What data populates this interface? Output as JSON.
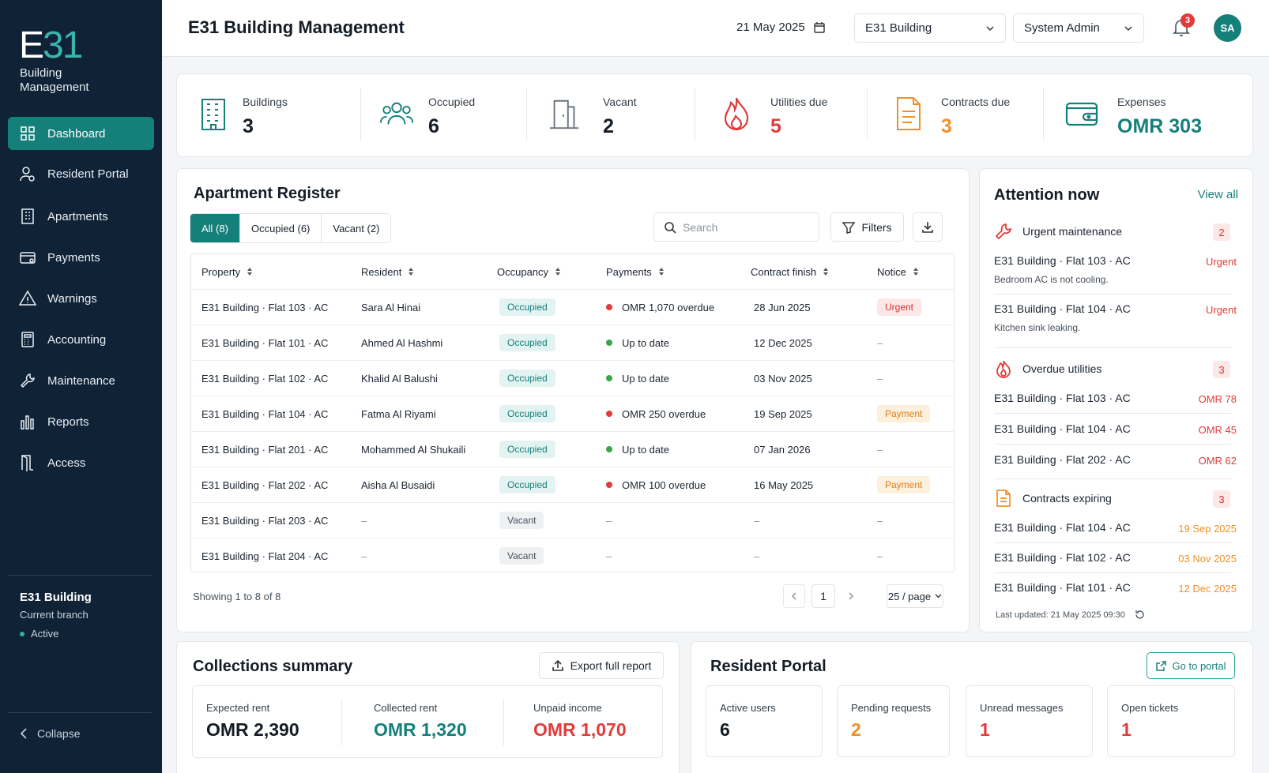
{
  "sidebar": {
    "logo": {
      "e": "E",
      "num": "31",
      "line1": "Building",
      "line2": "Management"
    },
    "nav": [
      {
        "label": "Dashboard",
        "icon": "dashboard-icon",
        "active": true
      },
      {
        "label": "Resident Portal",
        "icon": "user-settings-icon"
      },
      {
        "label": "Apartments",
        "icon": "building-icon"
      },
      {
        "label": "Payments",
        "icon": "wallet-icon"
      },
      {
        "label": "Warnings",
        "icon": "warning-icon"
      },
      {
        "label": "Accounting",
        "icon": "calculator-icon"
      },
      {
        "label": "Maintenance",
        "icon": "wrench-icon"
      },
      {
        "label": "Reports",
        "icon": "bar-chart-icon"
      },
      {
        "label": "Access",
        "icon": "door-icon"
      }
    ],
    "branch": {
      "name": "E31 Building",
      "sub": "Current branch",
      "status": "Active"
    },
    "collapse": "Collapse"
  },
  "header": {
    "title": "E31 Building Management",
    "date": "21 May 2025",
    "building_select": "E31 Building",
    "user_select": "System Admin",
    "notifications": "3",
    "avatar": "SA"
  },
  "stats": [
    {
      "label": "Buildings",
      "value": "3",
      "icon": "building-icon",
      "color": "#157f7a"
    },
    {
      "label": "Occupied",
      "value": "6",
      "icon": "people-icon",
      "color": "#157f7a"
    },
    {
      "label": "Vacant",
      "value": "2",
      "icon": "empty-door-icon",
      "color": "#6b7480"
    },
    {
      "label": "Utilities due",
      "value": "5",
      "icon": "flame-icon",
      "color": "#e23b3b"
    },
    {
      "label": "Contracts due",
      "value": "3",
      "icon": "document-icon",
      "color": "#f0902a"
    },
    {
      "label": "Expenses",
      "value": "OMR 303",
      "icon": "wallet-icon",
      "color": "#157f7a"
    }
  ],
  "register": {
    "title": "Apartment Register",
    "tabs": [
      "All (8)",
      "Occupied (6)",
      "Vacant (2)"
    ],
    "search_placeholder": "Search",
    "filters": "Filters",
    "columns": [
      "Property",
      "Resident",
      "Occupancy",
      "Payments",
      "Contract finish",
      "Notice"
    ],
    "rows": [
      {
        "property": "E31 Building · Flat 103 · AC",
        "resident": "Sara Al Hinai",
        "occupancy": "Occupied",
        "payment": "OMR 1,070 overdue",
        "pay_status": "bad",
        "contract": "28 Jun 2025",
        "notice": "Urgent",
        "notice_type": "urg"
      },
      {
        "property": "E31 Building · Flat 101 · AC",
        "resident": "Ahmed Al Hashmi",
        "occupancy": "Occupied",
        "payment": "Up to date",
        "pay_status": "good",
        "contract": "12 Dec 2025",
        "notice": "–",
        "notice_type": "none"
      },
      {
        "property": "E31 Building · Flat 102 · AC",
        "resident": "Khalid Al Balushi",
        "occupancy": "Occupied",
        "payment": "Up to date",
        "pay_status": "good",
        "contract": "03 Nov 2025",
        "notice": "–",
        "notice_type": "none"
      },
      {
        "property": "E31 Building · Flat 104 · AC",
        "resident": "Fatma Al Riyami",
        "occupancy": "Occupied",
        "payment": "OMR 250 overdue",
        "pay_status": "bad",
        "contract": "19 Sep 2025",
        "notice": "Payment",
        "notice_type": "pay"
      },
      {
        "property": "E31 Building · Flat 201 · AC",
        "resident": "Mohammed Al Shukaili",
        "occupancy": "Occupied",
        "payment": "Up to date",
        "pay_status": "good",
        "contract": "07 Jan 2026",
        "notice": "–",
        "notice_type": "none"
      },
      {
        "property": "E31 Building · Flat 202 · AC",
        "resident": "Aisha Al Busaidi",
        "occupancy": "Occupied",
        "payment": "OMR 100 overdue",
        "pay_status": "bad",
        "contract": "16 May 2025",
        "notice": "Payment",
        "notice_type": "pay"
      },
      {
        "property": "E31 Building · Flat 203 · AC",
        "resident": "–",
        "occupancy": "Vacant",
        "payment": "–",
        "pay_status": "none",
        "contract": "–",
        "notice": "–",
        "notice_type": "none"
      },
      {
        "property": "E31 Building · Flat 204 · AC",
        "resident": "–",
        "occupancy": "Vacant",
        "payment": "–",
        "pay_status": "none",
        "contract": "–",
        "notice": "–",
        "notice_type": "none"
      }
    ],
    "showing": "Showing 1 to 8 of 8",
    "page": "1",
    "per_page": "25 / page"
  },
  "attention": {
    "title": "Attention now",
    "view_all": "View all",
    "maintenance": {
      "label": "Urgent maintenance",
      "count": "2",
      "items": [
        {
          "name": "E31 Building · Flat 103 · AC",
          "tag": "Urgent",
          "desc": "Bedroom AC is not cooling."
        },
        {
          "name": "E31 Building · Flat 104 · AC",
          "tag": "Urgent",
          "desc": "Kitchen sink leaking."
        }
      ]
    },
    "utilities": {
      "label": "Overdue utilities",
      "count": "3",
      "items": [
        {
          "name": "E31 Building · Flat 103 · AC",
          "amount": "OMR 78"
        },
        {
          "name": "E31 Building · Flat 104 · AC",
          "amount": "OMR 45"
        },
        {
          "name": "E31 Building · Flat 202 · AC",
          "amount": "OMR 62"
        }
      ]
    },
    "contracts": {
      "label": "Contracts expiring",
      "count": "3",
      "items": [
        {
          "name": "E31 Building · Flat 104 · AC",
          "date": "19 Sep 2025"
        },
        {
          "name": "E31 Building · Flat 102 · AC",
          "date": "03 Nov 2025"
        },
        {
          "name": "E31 Building · Flat 101 · AC",
          "date": "12 Dec 2025"
        }
      ]
    },
    "last_updated": "Last updated: 21 May 2025 09:30"
  },
  "collections": {
    "title": "Collections summary",
    "export": "Export full report",
    "items": [
      {
        "label": "Expected rent",
        "value": "OMR 2,390",
        "color": "#141c26"
      },
      {
        "label": "Collected rent",
        "value": "OMR 1,320",
        "color": "#157f7a"
      },
      {
        "label": "Unpaid income",
        "value": "OMR 1,070",
        "color": "#e23b3b"
      }
    ]
  },
  "portal": {
    "title": "Resident Portal",
    "go": "Go to portal",
    "items": [
      {
        "label": "Active users",
        "value": "6",
        "color": "#141c26"
      },
      {
        "label": "Pending requests",
        "value": "2",
        "color": "#f0902a"
      },
      {
        "label": "Unread messages",
        "value": "1",
        "color": "#e23b3b"
      },
      {
        "label": "Open tickets",
        "value": "1",
        "color": "#e23b3b"
      }
    ]
  }
}
